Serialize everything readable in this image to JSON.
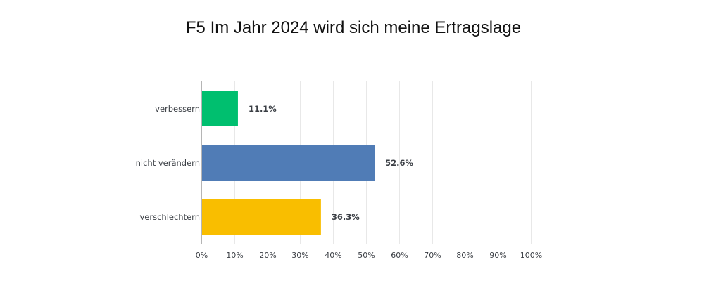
{
  "chart_data": {
    "type": "bar",
    "orientation": "horizontal",
    "title": "F5 Im Jahr 2024 wird sich meine Ertragslage",
    "categories": [
      "verbessern",
      "nicht verändern",
      "verschlechtern"
    ],
    "values": [
      11.1,
      52.6,
      36.3
    ],
    "value_labels": [
      "11.1%",
      "52.6%",
      "36.3%"
    ],
    "bar_colors": [
      "#00bf6f",
      "#507cb6",
      "#f9be00"
    ],
    "x_ticks": [
      "0%",
      "10%",
      "20%",
      "30%",
      "40%",
      "50%",
      "60%",
      "70%",
      "80%",
      "90%",
      "100%"
    ],
    "xlim": [
      0,
      100
    ],
    "xlabel": "",
    "ylabel": "",
    "grid": true
  }
}
